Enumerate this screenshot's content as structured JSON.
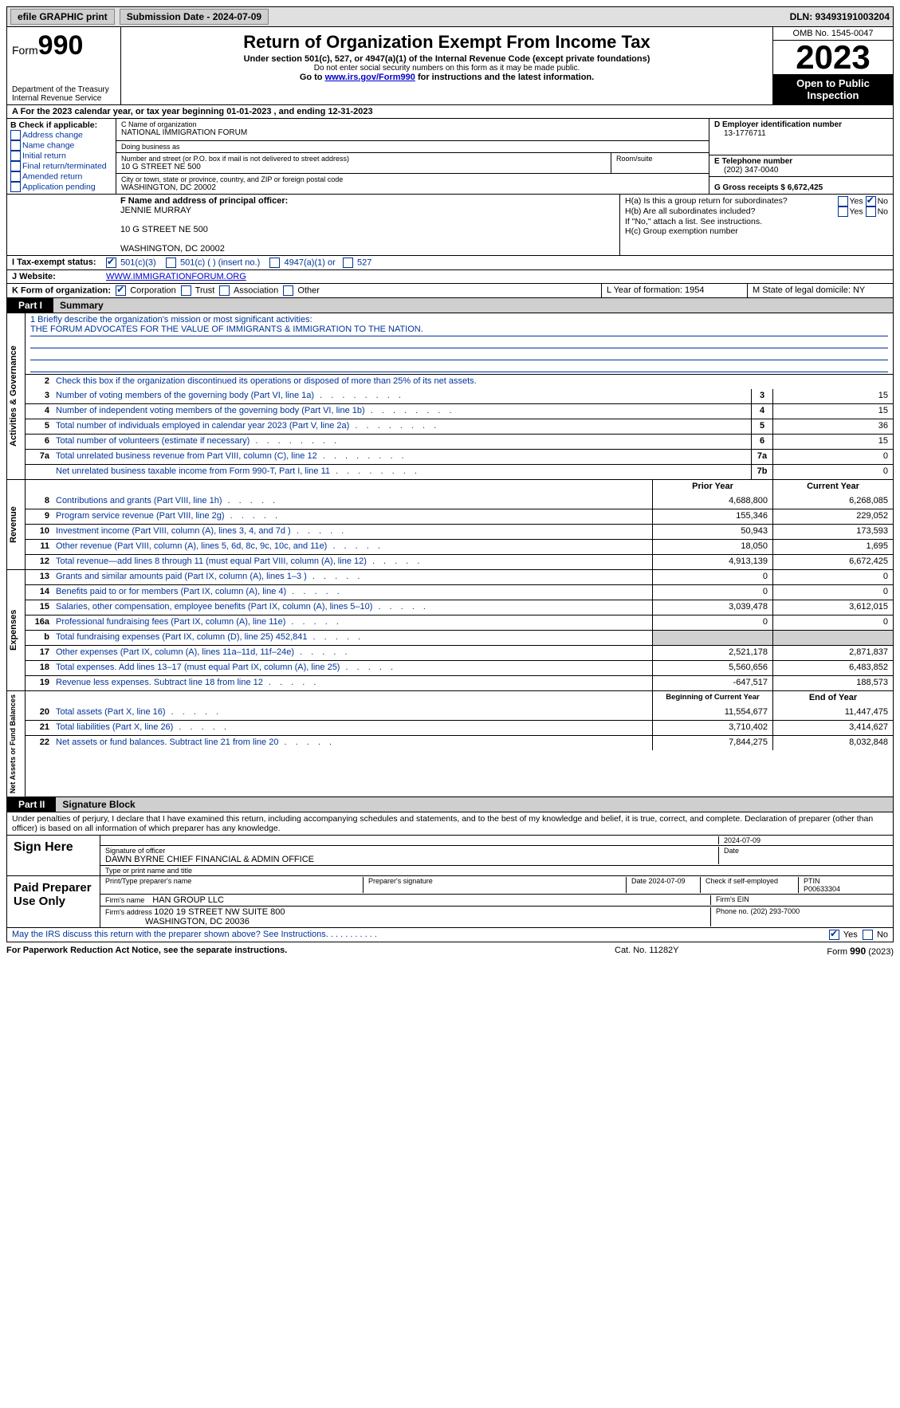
{
  "topbar": {
    "efile": "efile GRAPHIC print",
    "sub_date_label": "Submission Date - 2024-07-09",
    "dln_label": "DLN: 93493191003204"
  },
  "header": {
    "form_label": "Form",
    "form_number": "990",
    "dept": "Department of the Treasury\nInternal Revenue Service",
    "title": "Return of Organization Exempt From Income Tax",
    "sub1": "Under section 501(c), 527, or 4947(a)(1) of the Internal Revenue Code (except private foundations)",
    "sub2": "Do not enter social security numbers on this form as it may be made public.",
    "sub3_pre": "Go to ",
    "sub3_link": "www.irs.gov/Form990",
    "sub3_post": " for instructions and the latest information.",
    "omb": "OMB No. 1545-0047",
    "year": "2023",
    "open": "Open to Public Inspection"
  },
  "row_a": "A For the 2023 calendar year, or tax year beginning 01-01-2023   , and ending 12-31-2023",
  "box_b": {
    "label": "B Check if applicable:",
    "opts": [
      "Address change",
      "Name change",
      "Initial return",
      "Final return/terminated",
      "Amended return",
      "Application pending"
    ]
  },
  "box_c": {
    "name_lbl": "C Name of organization",
    "name": "NATIONAL IMMIGRATION FORUM",
    "dba_lbl": "Doing business as",
    "dba": "",
    "addr_lbl": "Number and street (or P.O. box if mail is not delivered to street address)",
    "addr": "10 G STREET NE 500",
    "room_lbl": "Room/suite",
    "city_lbl": "City or town, state or province, country, and ZIP or foreign postal code",
    "city": "WASHINGTON, DC  20002"
  },
  "box_d": {
    "lbl": "D Employer identification number",
    "val": "13-1776711",
    "e_lbl": "E Telephone number",
    "e_val": "(202) 347-0040",
    "g_lbl": "G Gross receipts $ 6,672,425"
  },
  "box_f": {
    "lbl": "F  Name and address of principal officer:",
    "l1": "JENNIE MURRAY",
    "l2": "10 G STREET NE 500",
    "l3": "WASHINGTON, DC  20002"
  },
  "box_h": {
    "ha_lbl": "H(a)  Is this a group return for subordinates?",
    "hb_lbl": "H(b)  Are all subordinates included?",
    "hb_note": "If \"No,\" attach a list. See instructions.",
    "hc_lbl": "H(c)  Group exemption number",
    "yes": "Yes",
    "no": "No"
  },
  "row_i": {
    "lbl": "I    Tax-exempt status:",
    "o1": "501(c)(3)",
    "o2": "501(c) (  ) (insert no.)",
    "o3": "4947(a)(1) or",
    "o4": "527"
  },
  "row_j": {
    "lbl": "J   Website:",
    "val": "WWW.IMMIGRATIONFORUM.ORG"
  },
  "row_k": {
    "lbl": "K Form of organization:",
    "o1": "Corporation",
    "o2": "Trust",
    "o3": "Association",
    "o4": "Other",
    "l_lbl": "L Year of formation: 1954",
    "m_lbl": "M State of legal domicile: NY"
  },
  "part1": {
    "tab": "Part I",
    "title": "Summary"
  },
  "mission": {
    "lbl": "1   Briefly describe the organization's mission or most significant activities:",
    "text": "THE FORUM ADVOCATES FOR THE VALUE OF IMMIGRANTS & IMMIGRATION TO THE NATION."
  },
  "line2": "Check this box      if the organization discontinued its operations or disposed of more than 25% of its net assets.",
  "gov_rows": [
    {
      "n": "3",
      "d": "Number of voting members of the governing body (Part VI, line 1a)",
      "b": "3",
      "v": "15"
    },
    {
      "n": "4",
      "d": "Number of independent voting members of the governing body (Part VI, line 1b)",
      "b": "4",
      "v": "15"
    },
    {
      "n": "5",
      "d": "Total number of individuals employed in calendar year 2023 (Part V, line 2a)",
      "b": "5",
      "v": "36"
    },
    {
      "n": "6",
      "d": "Total number of volunteers (estimate if necessary)",
      "b": "6",
      "v": "15"
    },
    {
      "n": "7a",
      "d": "Total unrelated business revenue from Part VIII, column (C), line 12",
      "b": "7a",
      "v": "0"
    },
    {
      "n": "",
      "d": "Net unrelated business taxable income from Form 990-T, Part I, line 11",
      "b": "7b",
      "v": "0"
    }
  ],
  "col_hdr": {
    "prior": "Prior Year",
    "current": "Current Year",
    "boy": "Beginning of Current Year",
    "eoy": "End of Year"
  },
  "rev_rows": [
    {
      "n": "8",
      "d": "Contributions and grants (Part VIII, line 1h)",
      "p": "4,688,800",
      "c": "6,268,085"
    },
    {
      "n": "9",
      "d": "Program service revenue (Part VIII, line 2g)",
      "p": "155,346",
      "c": "229,052"
    },
    {
      "n": "10",
      "d": "Investment income (Part VIII, column (A), lines 3, 4, and 7d )",
      "p": "50,943",
      "c": "173,593"
    },
    {
      "n": "11",
      "d": "Other revenue (Part VIII, column (A), lines 5, 6d, 8c, 9c, 10c, and 11e)",
      "p": "18,050",
      "c": "1,695"
    },
    {
      "n": "12",
      "d": "Total revenue—add lines 8 through 11 (must equal Part VIII, column (A), line 12)",
      "p": "4,913,139",
      "c": "6,672,425"
    }
  ],
  "exp_rows": [
    {
      "n": "13",
      "d": "Grants and similar amounts paid (Part IX, column (A), lines 1–3 )",
      "p": "0",
      "c": "0"
    },
    {
      "n": "14",
      "d": "Benefits paid to or for members (Part IX, column (A), line 4)",
      "p": "0",
      "c": "0"
    },
    {
      "n": "15",
      "d": "Salaries, other compensation, employee benefits (Part IX, column (A), lines 5–10)",
      "p": "3,039,478",
      "c": "3,612,015"
    },
    {
      "n": "16a",
      "d": "Professional fundraising fees (Part IX, column (A), line 11e)",
      "p": "0",
      "c": "0"
    },
    {
      "n": "b",
      "d": "Total fundraising expenses (Part IX, column (D), line 25) 452,841",
      "p": "",
      "c": "",
      "shade": true
    },
    {
      "n": "17",
      "d": "Other expenses (Part IX, column (A), lines 11a–11d, 11f–24e)",
      "p": "2,521,178",
      "c": "2,871,837"
    },
    {
      "n": "18",
      "d": "Total expenses. Add lines 13–17 (must equal Part IX, column (A), line 25)",
      "p": "5,560,656",
      "c": "6,483,852"
    },
    {
      "n": "19",
      "d": "Revenue less expenses. Subtract line 18 from line 12",
      "p": "-647,517",
      "c": "188,573"
    }
  ],
  "net_rows": [
    {
      "n": "20",
      "d": "Total assets (Part X, line 16)",
      "p": "11,554,677",
      "c": "11,447,475"
    },
    {
      "n": "21",
      "d": "Total liabilities (Part X, line 26)",
      "p": "3,710,402",
      "c": "3,414,627"
    },
    {
      "n": "22",
      "d": "Net assets or fund balances. Subtract line 21 from line 20",
      "p": "7,844,275",
      "c": "8,032,848"
    }
  ],
  "vtabs": {
    "gov": "Activities & Governance",
    "rev": "Revenue",
    "exp": "Expenses",
    "net": "Net Assets or Fund Balances"
  },
  "part2": {
    "tab": "Part II",
    "title": "Signature Block"
  },
  "sig_decl": "Under penalties of perjury, I declare that I have examined this return, including accompanying schedules and statements, and to the best of my knowledge and belief, it is true, correct, and complete. Declaration of preparer (other than officer) is based on all information of which preparer has any knowledge.",
  "sign_here": {
    "lbl": "Sign Here",
    "date": "2024-07-09",
    "sig_lbl": "Signature of officer",
    "officer": "DAWN BYRNE  CHIEF FINANCIAL & ADMIN OFFICE",
    "type_lbl": "Type or print name and title",
    "date_lbl": "Date"
  },
  "paid": {
    "lbl": "Paid Preparer Use Only",
    "c1": "Print/Type preparer's name",
    "c2": "Preparer's signature",
    "c3": "Date 2024-07-09",
    "c4_lbl": "Check         if self-employed",
    "c5_lbl": "PTIN",
    "c5": "P00633304",
    "firm_lbl": "Firm's name",
    "firm": "HAN GROUP LLC",
    "ein_lbl": "Firm's EIN",
    "addr_lbl": "Firm's address",
    "addr1": "1020 19 STREET NW SUITE 800",
    "addr2": "WASHINGTON, DC  20036",
    "phone_lbl": "Phone no. (202) 293-7000"
  },
  "discuss": {
    "q": "May the IRS discuss this return with the preparer shown above? See Instructions.",
    "yes": "Yes",
    "no": "No"
  },
  "footer": {
    "f1": "For Paperwork Reduction Act Notice, see the separate instructions.",
    "f2": "Cat. No. 11282Y",
    "f3_a": "Form ",
    "f3_b": "990",
    "f3_c": " (2023)"
  }
}
